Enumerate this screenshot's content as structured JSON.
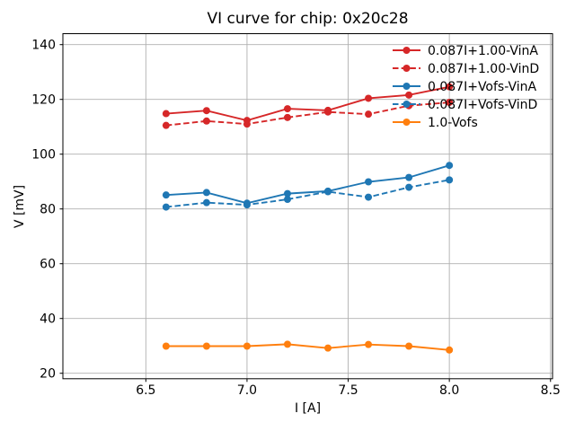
{
  "chart_data": {
    "type": "line",
    "title": "VI curve for chip: 0x20c28",
    "xlabel": "I [A]",
    "ylabel": "V [mV]",
    "xlim": [
      6.09,
      8.51
    ],
    "ylim": [
      18,
      144
    ],
    "xticks": [
      6.5,
      7.0,
      7.5,
      8.0,
      8.5
    ],
    "xtick_labels": [
      "6.5",
      "7.0",
      "7.5",
      "8.0",
      "8.5"
    ],
    "yticks": [
      20,
      40,
      60,
      80,
      100,
      120,
      140
    ],
    "ytick_labels": [
      "20",
      "40",
      "60",
      "80",
      "100",
      "120",
      "140"
    ],
    "grid": true,
    "grid_color": "#b0b0b0",
    "axis_color": "#000000",
    "legend_position": "upper right",
    "x": [
      6.6,
      6.8,
      7.0,
      7.2,
      7.4,
      7.6,
      7.8,
      8.0
    ],
    "series": [
      {
        "name": "0.087I+1.00-VinA",
        "color": "#d62728",
        "style": "solid",
        "values": [
          114.8,
          115.9,
          112.3,
          116.6,
          116.0,
          120.4,
          121.6,
          124.6
        ]
      },
      {
        "name": "0.087I+1.00-VinD",
        "color": "#d62728",
        "style": "dashed",
        "values": [
          110.5,
          112.1,
          111.0,
          113.4,
          115.4,
          114.6,
          117.7,
          118.9
        ]
      },
      {
        "name": "0.087I+Vofs-VinA",
        "color": "#1f77b4",
        "style": "solid",
        "values": [
          85.1,
          86.0,
          82.1,
          85.6,
          86.5,
          89.9,
          91.5,
          95.9
        ]
      },
      {
        "name": "0.087I+Vofs-VinD",
        "color": "#1f77b4",
        "style": "dashed",
        "values": [
          80.7,
          82.3,
          81.5,
          83.5,
          86.3,
          84.3,
          87.9,
          90.6
        ]
      },
      {
        "name": "1.0-Vofs",
        "color": "#ff7f0e",
        "style": "solid",
        "values": [
          29.9,
          29.9,
          29.9,
          30.6,
          29.2,
          30.5,
          29.9,
          28.5
        ]
      }
    ]
  }
}
